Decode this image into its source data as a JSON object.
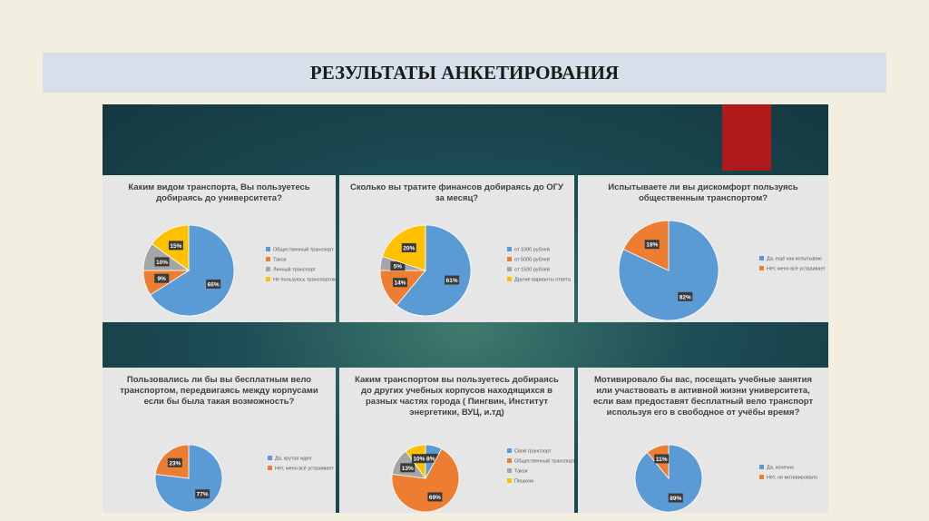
{
  "slide_title": "РЕЗУЛЬТАТЫ АНКЕТИРОВАНИЯ",
  "chart_data": [
    {
      "type": "pie",
      "title": "Каким видом транспорта, Вы пользуетесь добираясь до университета?",
      "categories": [
        "Общественный транспорт",
        "Такси",
        "Личный транспорт",
        "Не пользуюсь транспортом"
      ],
      "values": [
        66,
        9,
        10,
        15
      ],
      "value_labels": [
        "66%",
        "9%",
        "10%",
        "15%"
      ],
      "colors": [
        "#5b9bd5",
        "#ed7d31",
        "#a5a5a5",
        "#ffc000"
      ]
    },
    {
      "type": "pie",
      "title": "Сколько вы тратите финансов добираясь до ОГУ за месяц?",
      "categories": [
        "от 1000 рублей",
        "от 5000 рублей",
        "от 1500 рублей",
        "Другие варианты ответа"
      ],
      "values": [
        61,
        14,
        5,
        20
      ],
      "value_labels": [
        "61%",
        "14%",
        "5%",
        "20%"
      ],
      "colors": [
        "#5b9bd5",
        "#ed7d31",
        "#a5a5a5",
        "#ffc000"
      ]
    },
    {
      "type": "pie",
      "title": "Испытываете ли вы дискомфорт пользуясь общественным транспортом?",
      "categories": [
        "Да, ещё как испытываю",
        "Нет, меня всё устраивает"
      ],
      "values": [
        82,
        18
      ],
      "value_labels": [
        "82%",
        "18%"
      ],
      "colors": [
        "#5b9bd5",
        "#ed7d31"
      ]
    },
    {
      "type": "pie",
      "title": "Пользовались ли бы вы бесплатным вело транспортом, передвигаясь между корпусами если бы была такая возможность?",
      "categories": [
        "Да, крутая идея",
        "Нет, меня всё устраивает"
      ],
      "values": [
        77,
        23
      ],
      "value_labels": [
        "77%",
        "23%"
      ],
      "colors": [
        "#5b9bd5",
        "#ed7d31"
      ]
    },
    {
      "type": "pie",
      "title": "Каким транспортом вы пользуетесь добираясь до других учебных корпусов находящихся в разных частях города ( Пингвин, Институт энергетики, ВУЦ, и.тд)",
      "categories": [
        "Свой транспорт",
        "Общественный транспорт",
        "Такси",
        "Пешком"
      ],
      "values": [
        8,
        69,
        13,
        10
      ],
      "value_labels": [
        "8%",
        "69%",
        "13%",
        "10%"
      ],
      "colors": [
        "#5b9bd5",
        "#ed7d31",
        "#a5a5a5",
        "#ffc000"
      ]
    },
    {
      "type": "pie",
      "title": "Мотивировало бы вас, посещать учебные занятия или участвовать в активной жизни университета, если вам предоставят бесплатный вело транспорт используя его в свободное от учёбы время?",
      "categories": [
        "Да, конечно",
        "Нет, не мотивировало"
      ],
      "values": [
        89,
        11
      ],
      "value_labels": [
        "89%",
        "11%"
      ],
      "colors": [
        "#5b9bd5",
        "#ed7d31"
      ]
    }
  ]
}
